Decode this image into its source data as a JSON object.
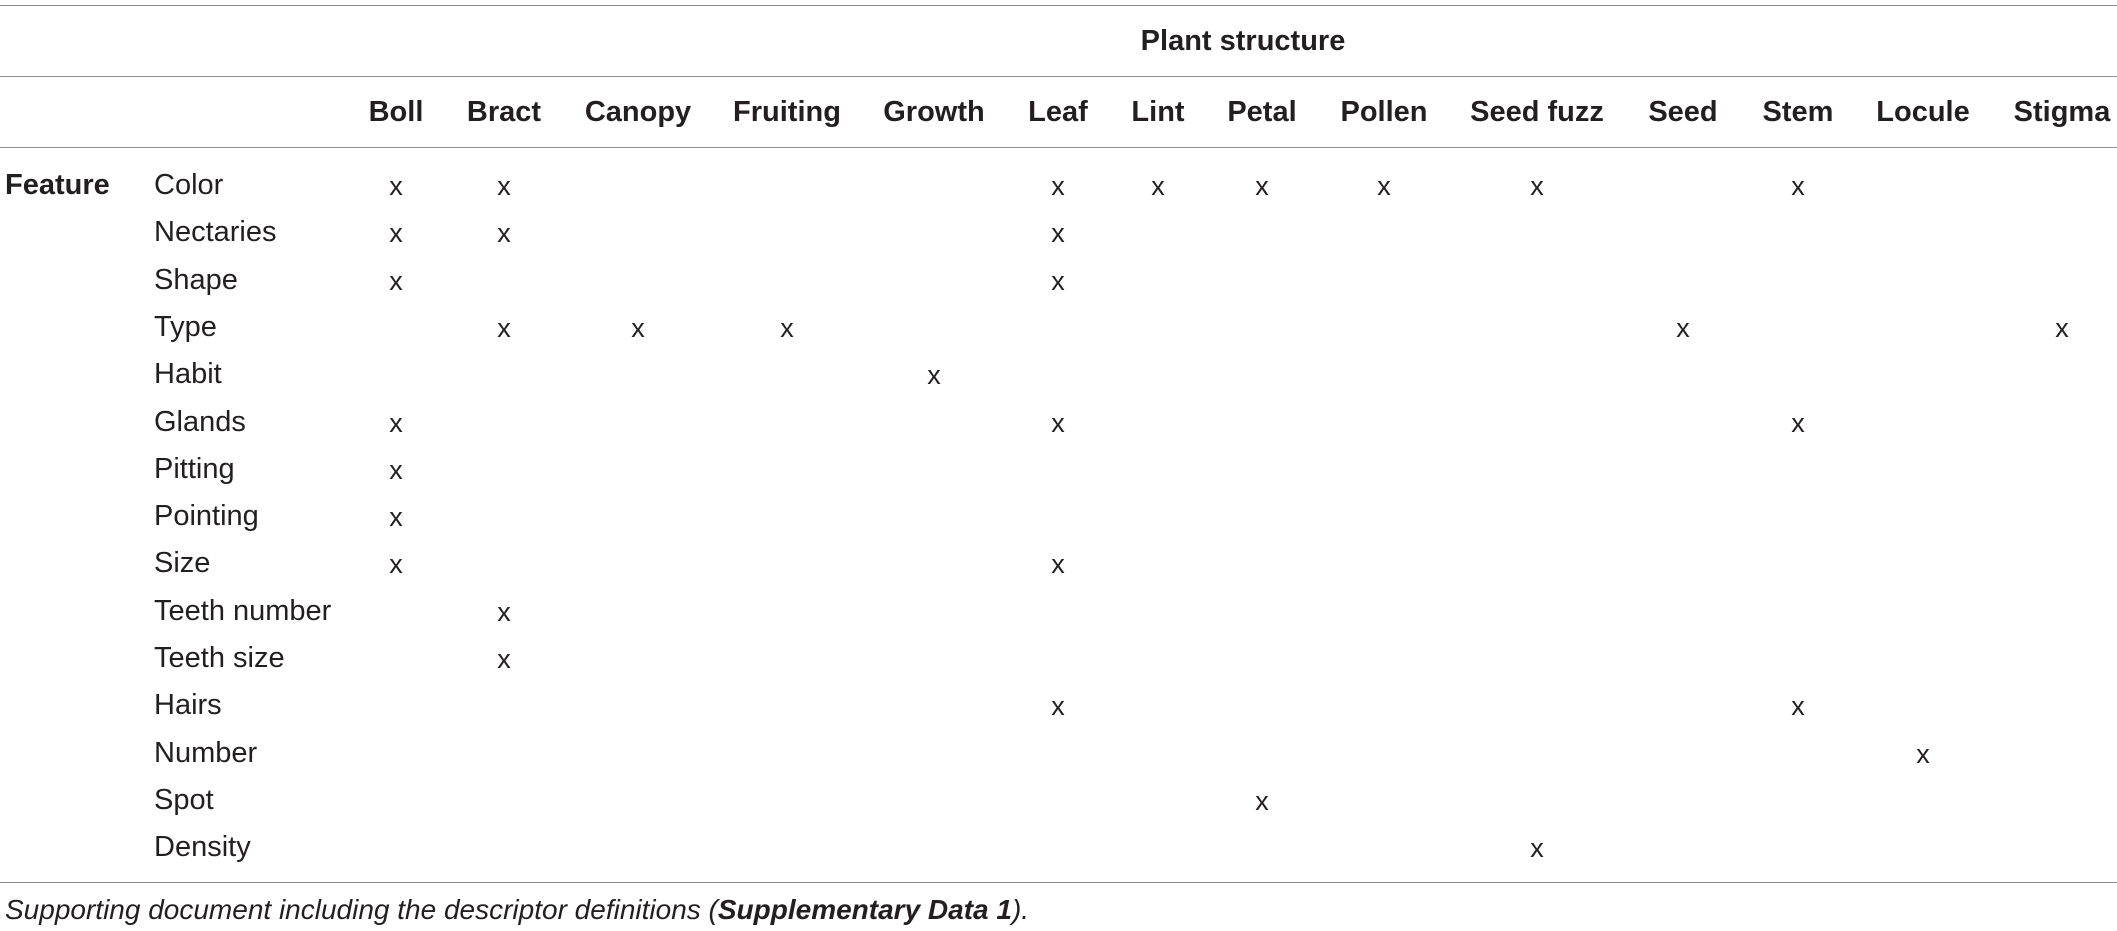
{
  "group_header": "Plant structure",
  "row_group_label": "Feature",
  "columns": [
    "Boll",
    "Bract",
    "Canopy",
    "Fruiting",
    "Growth",
    "Leaf",
    "Lint",
    "Petal",
    "Pollen",
    "Seed fuzz",
    "Seed",
    "Stem",
    "Locule",
    "Stigma"
  ],
  "rows": [
    {
      "feature": "Color",
      "marks": [
        "x",
        "x",
        "",
        "",
        "",
        "x",
        "x",
        "x",
        "x",
        "x",
        "",
        "x",
        "",
        ""
      ]
    },
    {
      "feature": "Nectaries",
      "marks": [
        "x",
        "x",
        "",
        "",
        "",
        "x",
        "",
        "",
        "",
        "",
        "",
        "",
        "",
        ""
      ]
    },
    {
      "feature": "Shape",
      "marks": [
        "x",
        "",
        "",
        "",
        "",
        "x",
        "",
        "",
        "",
        "",
        "",
        "",
        "",
        ""
      ]
    },
    {
      "feature": "Type",
      "marks": [
        "",
        "x",
        "x",
        "x",
        "",
        "",
        "",
        "",
        "",
        "",
        "x",
        "",
        "",
        "x"
      ]
    },
    {
      "feature": "Habit",
      "marks": [
        "",
        "",
        "",
        "",
        "x",
        "",
        "",
        "",
        "",
        "",
        "",
        "",
        "",
        ""
      ]
    },
    {
      "feature": "Glands",
      "marks": [
        "x",
        "",
        "",
        "",
        "",
        "x",
        "",
        "",
        "",
        "",
        "",
        "x",
        "",
        ""
      ]
    },
    {
      "feature": "Pitting",
      "marks": [
        "x",
        "",
        "",
        "",
        "",
        "",
        "",
        "",
        "",
        "",
        "",
        "",
        "",
        ""
      ]
    },
    {
      "feature": "Pointing",
      "marks": [
        "x",
        "",
        "",
        "",
        "",
        "",
        "",
        "",
        "",
        "",
        "",
        "",
        "",
        ""
      ]
    },
    {
      "feature": "Size",
      "marks": [
        "x",
        "",
        "",
        "",
        "",
        "x",
        "",
        "",
        "",
        "",
        "",
        "",
        "",
        ""
      ]
    },
    {
      "feature": "Teeth number",
      "marks": [
        "",
        "x",
        "",
        "",
        "",
        "",
        "",
        "",
        "",
        "",
        "",
        "",
        "",
        ""
      ]
    },
    {
      "feature": "Teeth size",
      "marks": [
        "",
        "x",
        "",
        "",
        "",
        "",
        "",
        "",
        "",
        "",
        "",
        "",
        "",
        ""
      ]
    },
    {
      "feature": "Hairs",
      "marks": [
        "",
        "",
        "",
        "",
        "",
        "x",
        "",
        "",
        "",
        "",
        "",
        "x",
        "",
        ""
      ]
    },
    {
      "feature": "Number",
      "marks": [
        "",
        "",
        "",
        "",
        "",
        "",
        "",
        "",
        "",
        "",
        "",
        "",
        "x",
        ""
      ]
    },
    {
      "feature": "Spot",
      "marks": [
        "",
        "",
        "",
        "",
        "",
        "",
        "",
        "x",
        "",
        "",
        "",
        "",
        "",
        ""
      ]
    },
    {
      "feature": "Density",
      "marks": [
        "",
        "",
        "",
        "",
        "",
        "",
        "",
        "",
        "",
        "x",
        "",
        "",
        "",
        ""
      ]
    }
  ],
  "footnote": {
    "before": "Supporting document including the descriptor definitions (",
    "bold": "Supplementary Data 1",
    "after": ")."
  }
}
